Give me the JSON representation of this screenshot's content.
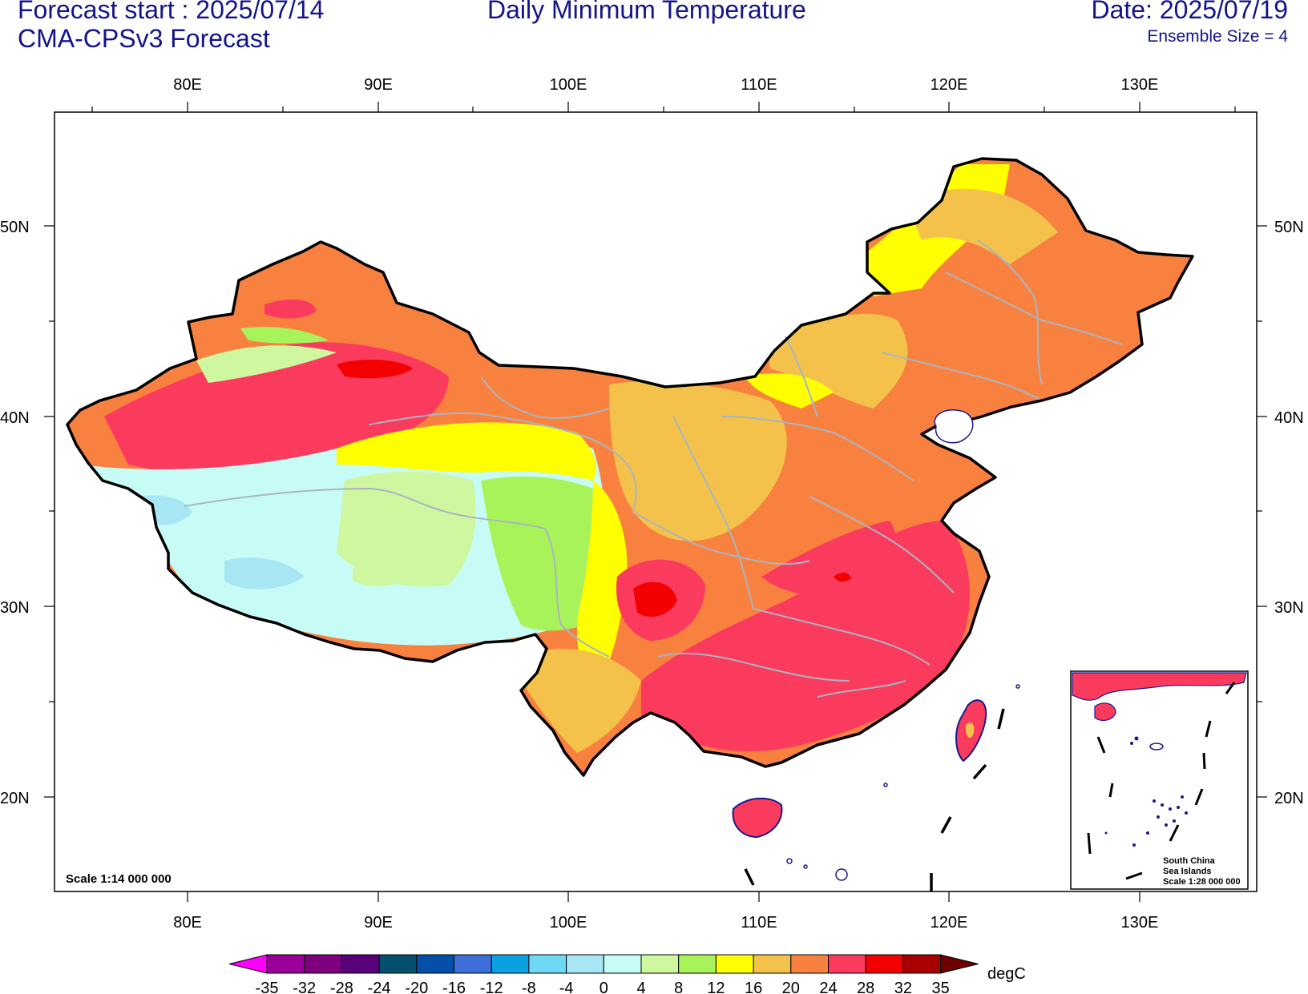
{
  "header": {
    "forecast_start": "Forecast start : 2025/07/14",
    "model": "CMA-CPSv3 Forecast",
    "title": "Daily Minimum Temperature",
    "date": "Date: 2025/07/19",
    "ensemble": "Ensemble Size = 4"
  },
  "map": {
    "lon_labels": [
      "80E",
      "90E",
      "100E",
      "110E",
      "120E",
      "130E"
    ],
    "lat_labels": [
      "50N",
      "40N",
      "30N",
      "20N"
    ],
    "scale_label": "Scale 1:14 000 000",
    "inset": {
      "line1": "South China",
      "line2": "Sea Islands",
      "line3": "Scale 1:28 000 000"
    }
  },
  "colorbar": {
    "unit": "degC",
    "levels": [
      "-35",
      "-32",
      "-28",
      "-24",
      "-20",
      "-16",
      "-12",
      "-8",
      "-4",
      "0",
      "4",
      "8",
      "12",
      "16",
      "20",
      "24",
      "28",
      "32",
      "35"
    ],
    "colors": [
      "#ff00ff",
      "#9b009b",
      "#7e007e",
      "#5a007a",
      "#06506e",
      "#054fa8",
      "#3c6fd7",
      "#0aa0e1",
      "#6fd8f5",
      "#a7e6f2",
      "#c7fcf6",
      "#cff7a0",
      "#a9f35a",
      "#ffff00",
      "#f4c24a",
      "#f9813f",
      "#fb3b5e",
      "#f50000",
      "#a80000",
      "#6e0000"
    ]
  }
}
